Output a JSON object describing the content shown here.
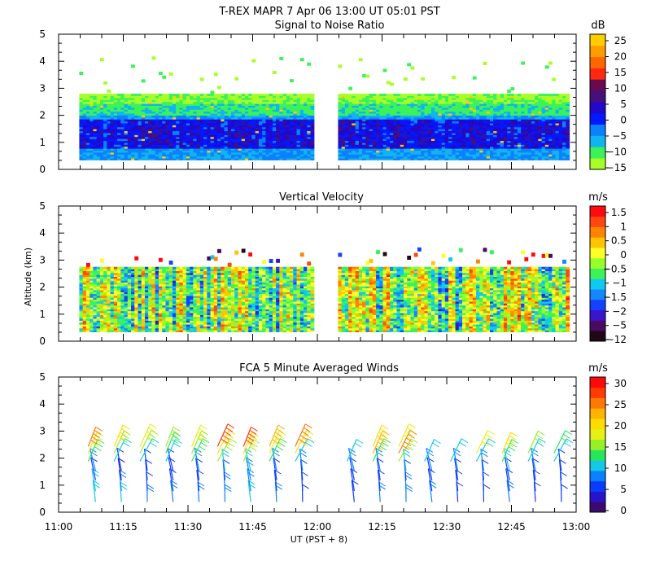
{
  "figure": {
    "title": "T-REX   MAPR   7 Apr 06   13:00 UT   05:01   PST",
    "xlabel": "UT  (PST + 8)",
    "ylabel": "Altitude (km)"
  },
  "chart_data": [
    {
      "type": "heatmap",
      "title": "Signal to Noise Ratio",
      "unit": "dB",
      "xlim": [
        "11:00",
        "13:00"
      ],
      "ylim": [
        0,
        5
      ],
      "yticks": [
        "0",
        "1",
        "2",
        "3",
        "4",
        "5"
      ],
      "colorbar_ticks": [
        "25",
        "20",
        "15",
        "10",
        "5",
        "0",
        "−5",
        "−10",
        "−15"
      ],
      "colors": [
        "#a8ff28",
        "#3cf25a",
        "#11b4f0",
        "#0a82ff",
        "#0418ff",
        "#2208c8",
        "#45107c",
        "#680a50",
        "#ff2810",
        "#ff6600",
        "#ff9c00",
        "#ffcc00"
      ],
      "data_gap": [
        "11:59",
        "12:05"
      ],
      "base_altitude_km": 0.35,
      "top_altitude_km": 2.8
    },
    {
      "type": "heatmap",
      "title": "Vertical Velocity",
      "unit": "m/s",
      "xlim": [
        "11:00",
        "13:00"
      ],
      "ylim": [
        0,
        5
      ],
      "yticks": [
        "0",
        "1",
        "2",
        "3",
        "4",
        "5"
      ],
      "colorbar_ticks": [
        "1.5",
        "1",
        "0.5",
        "0",
        "−0.5",
        "−1",
        "−1.5",
        "−2",
        "−5",
        "−12"
      ],
      "colors": [
        "#200818",
        "#4a0a60",
        "#3b15c8",
        "#1440ff",
        "#1686ff",
        "#10c8f0",
        "#3cf25a",
        "#96ff2a",
        "#ffff28",
        "#ffc400",
        "#ff8200",
        "#ff4810",
        "#ff0a10"
      ],
      "data_gap": [
        "11:59",
        "12:05"
      ],
      "base_altitude_km": 0.35,
      "top_altitude_km": 2.75
    },
    {
      "type": "scatter",
      "subtype": "wind-barbs",
      "title": "FCA 5 Minute Averaged Winds",
      "unit": "m/s",
      "xlim": [
        "11:00",
        "13:00"
      ],
      "ylim": [
        0,
        5
      ],
      "yticks": [
        "0",
        "1",
        "2",
        "3",
        "4",
        "5"
      ],
      "xticks": [
        "11:00",
        "11:15",
        "11:30",
        "11:45",
        "12:00",
        "12:15",
        "12:30",
        "12:45",
        "13:00"
      ],
      "colorbar_ticks": [
        "30",
        "25",
        "20",
        "15",
        "10",
        "5",
        "0"
      ],
      "colors": [
        "#3c0a6e",
        "#2814c8",
        "#0a3cff",
        "#0a82ff",
        "#14c8e6",
        "#28e65a",
        "#96f028",
        "#e6f014",
        "#ffdc00",
        "#ffb400",
        "#ff7800",
        "#ff3c00",
        "#ff0a0a"
      ],
      "times_min": [
        8,
        14,
        20,
        26,
        32,
        38,
        44,
        50,
        56,
        68,
        74,
        80,
        86,
        92,
        98,
        104,
        110,
        116
      ],
      "profiles": [
        [
          12,
          10,
          5,
          8,
          14,
          18,
          26
        ],
        [
          10,
          8,
          4,
          6,
          12,
          16,
          20
        ],
        [
          9,
          7,
          5,
          7,
          11,
          15,
          18
        ],
        [
          8,
          6,
          5,
          6,
          12,
          14,
          17
        ],
        [
          8,
          7,
          6,
          9,
          13,
          16,
          19
        ],
        [
          9,
          8,
          7,
          10,
          15,
          22,
          28
        ],
        [
          10,
          9,
          8,
          11,
          16,
          22,
          29
        ],
        [
          8,
          7,
          6,
          9,
          13,
          18,
          24
        ],
        [
          7,
          6,
          6,
          8,
          12,
          20,
          27
        ],
        [
          6,
          5,
          6,
          8,
          12,
          0,
          0
        ],
        [
          8,
          7,
          7,
          9,
          14,
          24,
          20
        ],
        [
          9,
          8,
          7,
          10,
          16,
          26,
          18
        ],
        [
          8,
          7,
          6,
          9,
          12,
          0,
          0
        ],
        [
          7,
          6,
          7,
          8,
          11,
          0,
          0
        ],
        [
          7,
          7,
          6,
          9,
          12,
          18,
          0
        ],
        [
          8,
          6,
          7,
          10,
          13,
          20,
          0
        ],
        [
          6,
          5,
          6,
          8,
          12,
          16,
          0
        ],
        [
          5,
          6,
          5,
          7,
          10,
          14,
          0
        ]
      ]
    }
  ],
  "colorbar_units": [
    "dB",
    "m/s",
    "m/s"
  ]
}
